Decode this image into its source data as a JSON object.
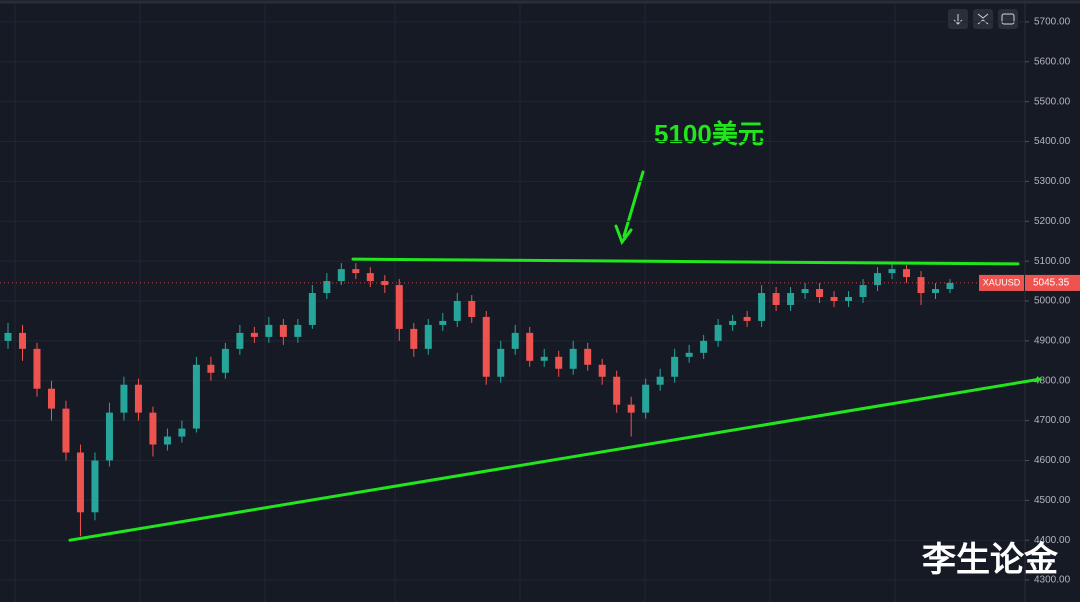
{
  "chart_data": {
    "type": "candlestick",
    "symbol": "XAUUSD",
    "last_price": 5045.35,
    "annotation": "5100美元",
    "watermark": "李生论金",
    "up_color": "#26a69a",
    "down_color": "#ef5350",
    "grid": true,
    "ylim": [
      4245,
      5755
    ],
    "yticks": [
      {
        "value": 5700,
        "label": "5700.00"
      },
      {
        "value": 5600,
        "label": "5600.00"
      },
      {
        "value": 5500,
        "label": "5500.00"
      },
      {
        "value": 5400,
        "label": "5400.00"
      },
      {
        "value": 5300,
        "label": "5300.00"
      },
      {
        "value": 5200,
        "label": "5200.00"
      },
      {
        "value": 5100,
        "label": "5100.00"
      },
      {
        "value": 5000,
        "label": "5000.00"
      },
      {
        "value": 4900,
        "label": "4900.00"
      },
      {
        "value": 4800,
        "label": "4800.00"
      },
      {
        "value": 4700,
        "label": "4700.00"
      },
      {
        "value": 4600,
        "label": "4600.00"
      },
      {
        "value": 4500,
        "label": "4500.00"
      },
      {
        "value": 4400,
        "label": "4400.00"
      },
      {
        "value": 4300,
        "label": "4300.00"
      }
    ],
    "trendlines": [
      {
        "start": 5105,
        "end": 5093,
        "color": "#22e51e"
      },
      {
        "start": 4400,
        "end": 4804,
        "color": "#22e51e"
      }
    ],
    "open": [
      4900,
      4920,
      4880,
      4780,
      4730,
      4620,
      4470,
      4600,
      4720,
      4790,
      4720,
      4640,
      4660,
      4680,
      4840,
      4820,
      4880,
      4920,
      4910,
      4940,
      4910,
      4940,
      5020,
      5050,
      5080,
      5070,
      5050,
      5040,
      4930,
      4880,
      4940,
      4950,
      5000,
      4960,
      4810,
      4880,
      4920,
      4850,
      4860,
      4830,
      4880,
      4840,
      4810,
      4740,
      4720,
      4790,
      4810,
      4860,
      4870,
      4900,
      4940,
      4960,
      4950,
      5020,
      4990,
      5020,
      5030,
      5010,
      5000,
      5010,
      5040,
      5070,
      5080,
      5060,
      5020,
      5030
    ],
    "high": [
      4945,
      4940,
      4895,
      4800,
      4750,
      4640,
      4620,
      4745,
      4810,
      4805,
      4735,
      4680,
      4700,
      4860,
      4860,
      4895,
      4940,
      4935,
      4960,
      4955,
      4955,
      5040,
      5070,
      5095,
      5095,
      5085,
      5065,
      5055,
      4945,
      4955,
      4970,
      5020,
      5015,
      4975,
      4900,
      4940,
      4935,
      4880,
      4875,
      4900,
      4895,
      4855,
      4825,
      4760,
      4805,
      4830,
      4880,
      4890,
      4915,
      4955,
      4965,
      4975,
      5040,
      5035,
      5035,
      5045,
      5045,
      5025,
      5025,
      5055,
      5085,
      5095,
      5090,
      5075,
      5045,
      5055
    ],
    "low": [
      4880,
      4850,
      4760,
      4700,
      4600,
      4410,
      4450,
      4585,
      4700,
      4700,
      4610,
      4625,
      4645,
      4670,
      4800,
      4805,
      4865,
      4895,
      4895,
      4890,
      4895,
      4930,
      5005,
      5040,
      5055,
      5035,
      5020,
      4900,
      4860,
      4865,
      4925,
      4935,
      4945,
      4790,
      4795,
      4865,
      4835,
      4835,
      4810,
      4815,
      4825,
      4790,
      4720,
      4660,
      4705,
      4775,
      4795,
      4845,
      4855,
      4885,
      4925,
      4935,
      4935,
      4975,
      4975,
      5005,
      4995,
      4985,
      4985,
      4995,
      5025,
      5055,
      5045,
      4990,
      5005,
      5020
    ],
    "close": [
      4920,
      4880,
      4780,
      4730,
      4620,
      4470,
      4600,
      4720,
      4790,
      4720,
      4640,
      4660,
      4680,
      4840,
      4820,
      4880,
      4920,
      4910,
      4940,
      4910,
      4940,
      5020,
      5050,
      5080,
      5070,
      5050,
      5040,
      4930,
      4880,
      4940,
      4950,
      5000,
      4960,
      4810,
      4880,
      4920,
      4850,
      4860,
      4830,
      4880,
      4840,
      4810,
      4740,
      4720,
      4790,
      4810,
      4860,
      4870,
      4900,
      4940,
      4950,
      4950,
      5020,
      4990,
      5020,
      5030,
      5010,
      5000,
      5010,
      5040,
      5070,
      5080,
      5060,
      5020,
      5030,
      5045.35
    ]
  }
}
